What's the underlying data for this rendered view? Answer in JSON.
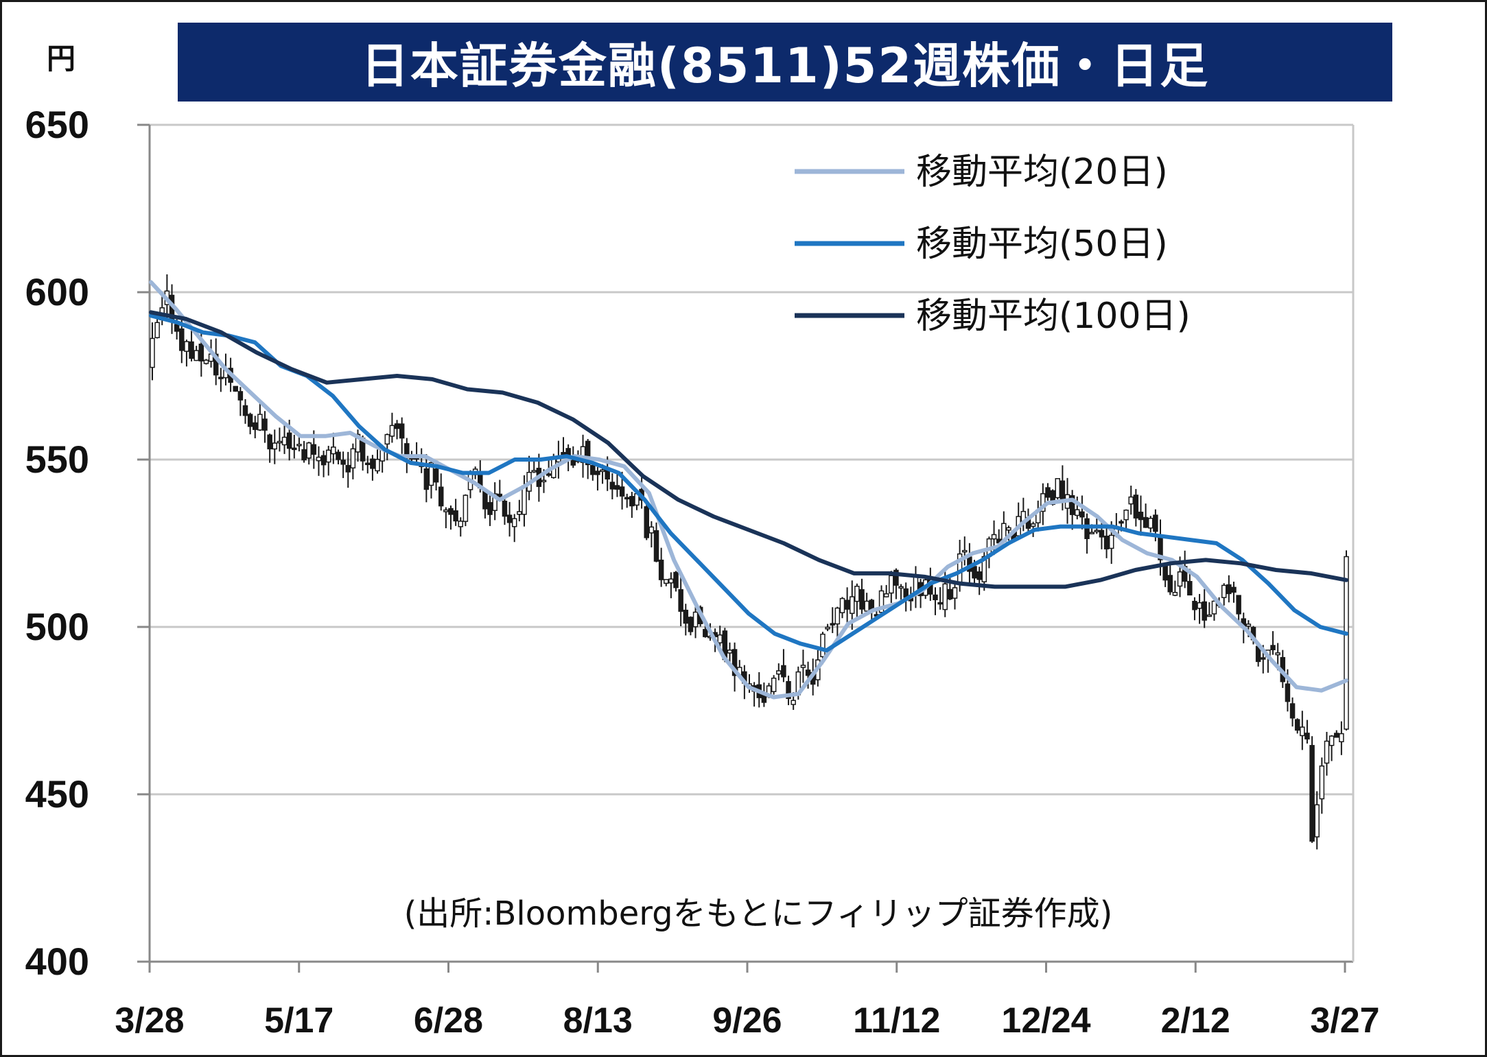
{
  "title": "日本証券金融(8511)52週株価・日足",
  "unit": "円",
  "source": "(出所:Bloombergをもとにフィリップ証券作成)",
  "colors": {
    "title_bg": "#0d2a6b",
    "ma20": "#9db6d8",
    "ma50": "#1f76c2",
    "ma100": "#1a3358",
    "candle": "#1a1a1a",
    "grid": "#c8c8c8"
  },
  "chart_data": {
    "type": "candlestick",
    "ylim": [
      400,
      650
    ],
    "yticks": [
      "650",
      "600",
      "550",
      "500",
      "450",
      "400"
    ],
    "xticks": [
      "3/28",
      "5/17",
      "6/28",
      "8/13",
      "9/26",
      "11/12",
      "12/24",
      "2/12",
      "3/27"
    ],
    "grid": true,
    "legend_position": "top-right",
    "series": [
      {
        "name": "移動平均(20日)",
        "color": "#9db6d8",
        "values": [
          603,
          595,
          586,
          577,
          570,
          563,
          557,
          557,
          558,
          554,
          551,
          551,
          547,
          543,
          538,
          542,
          547,
          551,
          550,
          548,
          540,
          520,
          505,
          491,
          482,
          479,
          480,
          490,
          501,
          505,
          507,
          511,
          518,
          522,
          524,
          531,
          537,
          538,
          533,
          526,
          522,
          520,
          515,
          506,
          499,
          490,
          482,
          481,
          484
        ]
      },
      {
        "name": "移動平均(50日)",
        "color": "#1f76c2",
        "values": [
          593,
          591,
          588,
          587,
          585,
          578,
          575,
          569,
          560,
          553,
          549,
          548,
          546,
          546,
          550,
          550,
          551,
          549,
          546,
          538,
          528,
          520,
          512,
          504,
          498,
          495,
          493,
          498,
          503,
          508,
          513,
          516,
          520,
          525,
          529,
          530,
          530,
          530,
          528,
          527,
          526,
          525,
          520,
          513,
          505,
          500,
          498
        ]
      },
      {
        "name": "移動平均(100日)",
        "color": "#1a3358",
        "values": [
          594,
          592,
          588,
          582,
          577,
          573,
          574,
          575,
          574,
          571,
          570,
          567,
          562,
          555,
          545,
          538,
          533,
          529,
          525,
          520,
          516,
          516,
          515,
          513,
          512,
          512,
          512,
          514,
          517,
          519,
          520,
          519,
          517,
          516,
          514
        ]
      }
    ],
    "candles_summary": {
      "first_close": 576,
      "high_near": 604,
      "low_near": 430,
      "last_close": 521
    }
  },
  "legend": [
    {
      "label": "移動平均(20日)",
      "color": "#9db6d8"
    },
    {
      "label": "移動平均(50日)",
      "color": "#1f76c2"
    },
    {
      "label": "移動平均(100日)",
      "color": "#1a3358"
    }
  ]
}
